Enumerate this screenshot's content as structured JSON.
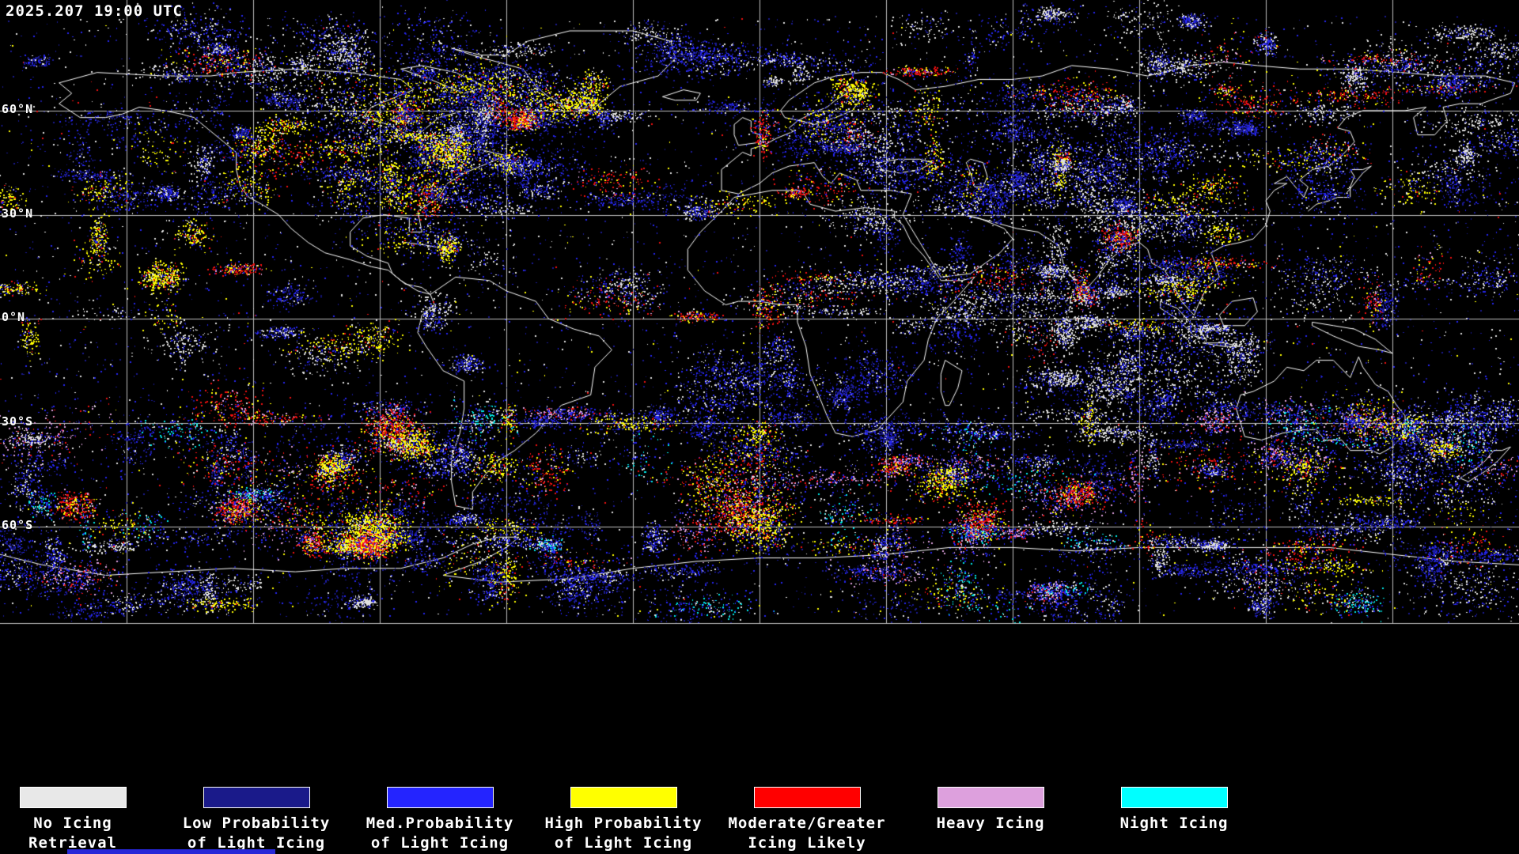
{
  "map": {
    "timestamp": "2025.207 19:00 UTC",
    "lat_labels": [
      "60°N",
      "30°N",
      "0°N",
      "30°S",
      "60°S"
    ],
    "background": "#000000",
    "grid_color": "#bdbdbd",
    "coastline_color": "#ffffff",
    "palette": {
      "white": "#e0e0e0",
      "navy": "#1a1a90",
      "blue": "#2525f0",
      "yellow": "#ffff00",
      "red": "#f01010",
      "pink": "#dda0dd",
      "cyan": "#00e8e8"
    }
  },
  "legend": {
    "items": [
      {
        "line1": "No Icing",
        "line2": "Retrieval",
        "color": "#e8e8e8"
      },
      {
        "line1": "Low Probability",
        "line2": "of Light Icing",
        "color": "#1a1a8a"
      },
      {
        "line1": "Med.Probability",
        "line2": "of Light Icing",
        "color": "#2424ff"
      },
      {
        "line1": "High Probability",
        "line2": "of Light Icing",
        "color": "#ffff00"
      },
      {
        "line1": "Moderate/Greater",
        "line2": "Icing Likely",
        "color": "#ff0000"
      },
      {
        "line1": "Heavy Icing",
        "line2": "",
        "color": "#dda0dd"
      },
      {
        "line1": "Night Icing",
        "line2": "",
        "color": "#00ffff"
      }
    ]
  },
  "progress_bar": {
    "color": "#2828d8"
  }
}
